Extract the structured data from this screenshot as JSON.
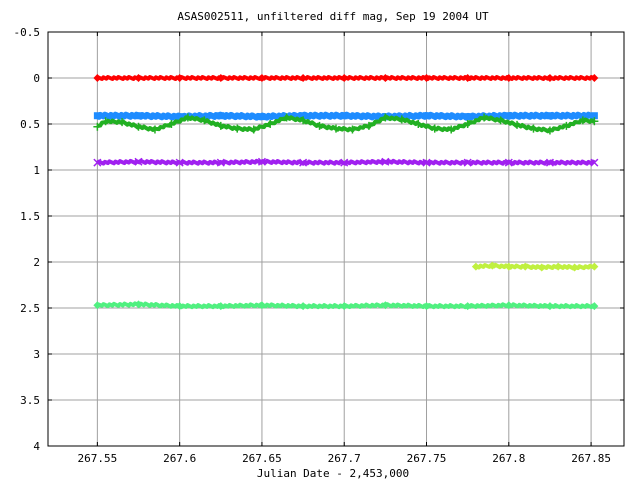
{
  "chart_data": {
    "type": "scatter",
    "title": "ASAS002511, unfiltered diff mag, Sep 19 2004 UT",
    "xlabel": "Julian Date - 2,453,000",
    "ylabel": "",
    "xlim": [
      267.52,
      267.87
    ],
    "ylim": [
      -0.5,
      4
    ],
    "y_inverted": true,
    "grid": true,
    "x_ticks": [
      267.55,
      267.6,
      267.65,
      267.7,
      267.75,
      267.8,
      267.85
    ],
    "x_tick_labels": [
      "267.55",
      "267.6",
      "267.65",
      "267.7",
      "267.75",
      "267.8",
      "267.85"
    ],
    "y_ticks": [
      -0.5,
      0,
      0.5,
      1,
      1.5,
      2,
      2.5,
      3,
      3.5,
      4
    ],
    "y_tick_labels": [
      "-0.5",
      "0",
      "0.5",
      "1",
      "1.5",
      "2",
      "2.5",
      "3",
      "3.5",
      "4"
    ],
    "series": [
      {
        "color": "#ff0000",
        "marker": "diamond",
        "x": [
          267.55,
          267.575,
          267.6,
          267.625,
          267.65,
          267.675,
          267.7,
          267.725,
          267.75,
          267.775,
          267.8,
          267.825,
          267.852
        ],
        "y": [
          0.0,
          0.0,
          0.0,
          0.0,
          0.0,
          0.0,
          0.0,
          0.0,
          0.0,
          0.0,
          0.0,
          0.0,
          0.0
        ]
      },
      {
        "color": "#1e8cff",
        "marker": "square",
        "x": [
          267.55,
          267.575,
          267.6,
          267.625,
          267.65,
          267.675,
          267.7,
          267.725,
          267.75,
          267.775,
          267.8,
          267.825,
          267.852
        ],
        "y": [
          0.41,
          0.41,
          0.42,
          0.41,
          0.42,
          0.41,
          0.41,
          0.42,
          0.41,
          0.42,
          0.41,
          0.41,
          0.41
        ]
      },
      {
        "color": "#22b022",
        "marker": "plus",
        "x": [
          267.55,
          267.555,
          267.565,
          267.575,
          267.585,
          267.595,
          267.605,
          267.615,
          267.625,
          267.635,
          267.645,
          267.655,
          267.665,
          267.675,
          267.685,
          267.695,
          267.705,
          267.715,
          267.725,
          267.735,
          267.745,
          267.755,
          267.765,
          267.775,
          267.785,
          267.795,
          267.805,
          267.815,
          267.825,
          267.835,
          267.845,
          267.852
        ],
        "y": [
          0.53,
          0.47,
          0.48,
          0.53,
          0.56,
          0.5,
          0.43,
          0.46,
          0.52,
          0.55,
          0.56,
          0.5,
          0.43,
          0.46,
          0.52,
          0.55,
          0.56,
          0.52,
          0.43,
          0.45,
          0.5,
          0.55,
          0.56,
          0.5,
          0.43,
          0.46,
          0.51,
          0.55,
          0.57,
          0.52,
          0.46,
          0.47
        ]
      },
      {
        "color": "#a020f0",
        "marker": "cross",
        "x": [
          267.55,
          267.575,
          267.6,
          267.625,
          267.65,
          267.675,
          267.7,
          267.725,
          267.75,
          267.775,
          267.8,
          267.825,
          267.852
        ],
        "y": [
          0.92,
          0.91,
          0.92,
          0.92,
          0.91,
          0.92,
          0.92,
          0.91,
          0.92,
          0.92,
          0.92,
          0.92,
          0.92
        ]
      },
      {
        "color": "#c0f040",
        "marker": "diamond",
        "x": [
          267.78,
          267.79,
          267.8,
          267.81,
          267.82,
          267.83,
          267.84,
          267.852
        ],
        "y": [
          2.05,
          2.04,
          2.05,
          2.05,
          2.06,
          2.05,
          2.06,
          2.05
        ]
      },
      {
        "color": "#50f080",
        "marker": "diamond",
        "x": [
          267.55,
          267.575,
          267.6,
          267.625,
          267.65,
          267.675,
          267.7,
          267.725,
          267.75,
          267.775,
          267.8,
          267.825,
          267.852
        ],
        "y": [
          2.47,
          2.46,
          2.48,
          2.48,
          2.47,
          2.48,
          2.48,
          2.47,
          2.48,
          2.48,
          2.47,
          2.48,
          2.48
        ]
      }
    ]
  }
}
